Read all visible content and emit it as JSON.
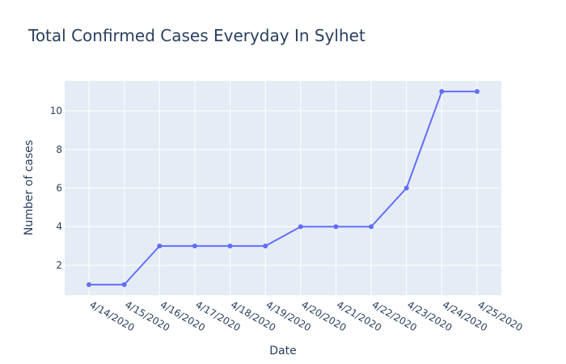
{
  "chart_data": {
    "type": "line",
    "title": "Total Confirmed Cases Everyday In Sylhet",
    "xlabel": "Date",
    "ylabel": "Number of cases",
    "categories": [
      "4/14/2020",
      "4/15/2020",
      "4/16/2020",
      "4/17/2020",
      "4/18/2020",
      "4/19/2020",
      "4/20/2020",
      "4/21/2020",
      "4/22/2020",
      "4/23/2020",
      "4/24/2020",
      "4/25/2020"
    ],
    "series": [
      {
        "values": [
          1,
          1,
          3,
          3,
          3,
          3,
          4,
          4,
          4,
          6,
          11,
          11
        ],
        "color": "#636efa"
      }
    ],
    "yticks": [
      2,
      4,
      6,
      8,
      10
    ],
    "ylim": [
      0.45,
      11.55
    ],
    "grid": true,
    "legend": "none",
    "colors": {
      "plot_background": "#e5ecf6",
      "grid": "#ffffff",
      "text": "#2a3f5f"
    }
  }
}
